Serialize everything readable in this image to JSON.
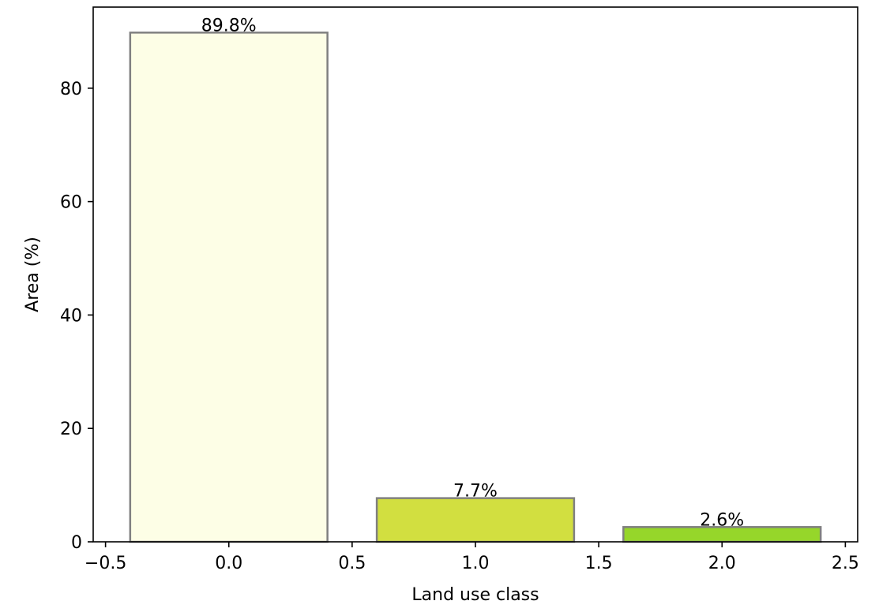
{
  "chart_data": {
    "type": "bar",
    "xlabel": "Land use class",
    "ylabel": "Area (%)",
    "x": [
      0.0,
      1.0,
      2.0
    ],
    "values": [
      89.8,
      7.7,
      2.6
    ],
    "bar_width": 0.8,
    "data_labels": [
      "89.8%",
      "7.7%",
      "2.6%"
    ],
    "colors": [
      "#fdfee6",
      "#d2df40",
      "#96d62a"
    ],
    "edge_color": "#808080",
    "xlim": [
      -0.55,
      2.55
    ],
    "ylim": [
      0,
      94.3
    ],
    "xticks": [
      -0.5,
      0.0,
      0.5,
      1.0,
      1.5,
      2.0,
      2.5
    ],
    "xtick_labels": [
      "−0.5",
      "0.0",
      "0.5",
      "1.0",
      "1.5",
      "2.0",
      "2.5"
    ],
    "yticks": [
      0,
      20,
      40,
      60,
      80
    ],
    "ytick_labels": [
      "0",
      "20",
      "40",
      "60",
      "80"
    ],
    "grid": false,
    "legend": null
  }
}
